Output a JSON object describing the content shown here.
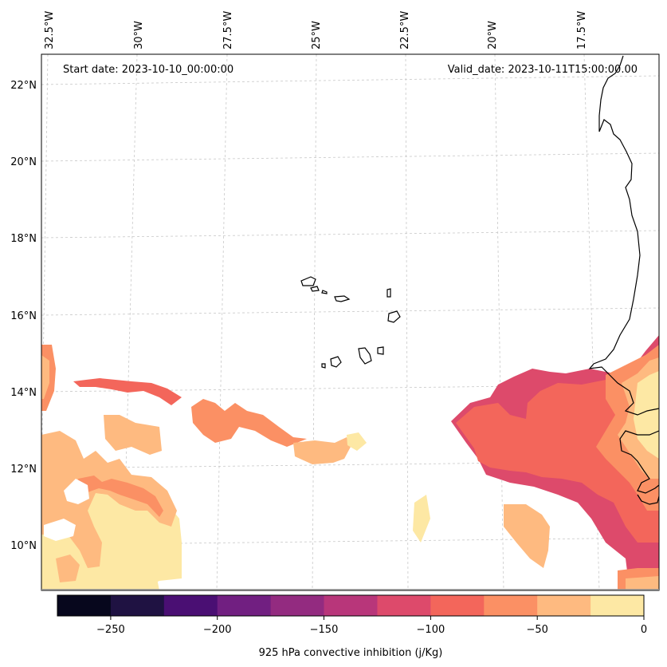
{
  "map": {
    "start_label": "Start date: 2023-10-10_00:00:00",
    "valid_label": "Valid_date: 2023-10-11T15:00:00.00",
    "lon_ticks": [
      "32.5°W",
      "30°W",
      "27.5°W",
      "25°W",
      "22.5°W",
      "20°W",
      "17.5°W"
    ],
    "lat_ticks": [
      "22°N",
      "20°N",
      "18°N",
      "16°N",
      "14°N",
      "12°N",
      "10°N"
    ],
    "extent": {
      "lon_min": -32.5,
      "lon_max": -15.0,
      "lat_min": 8.9,
      "lat_max": 22.7
    },
    "gridlines": true
  },
  "colorbar": {
    "label": "925 hPa convective inhibition (j/Kg)",
    "ticks": [
      "−250",
      "−200",
      "−150",
      "−100",
      "−50",
      "0"
    ],
    "levels": [
      -275,
      -250,
      -225,
      -200,
      -175,
      -150,
      -125,
      -100,
      -75,
      -50,
      -25,
      0
    ],
    "colors": [
      "#07071d",
      "#1f1242",
      "#4a0f73",
      "#711f81",
      "#932b80",
      "#b8367a",
      "#dd4a6b",
      "#f3665b",
      "#fb9064",
      "#feba80",
      "#fde8a4"
    ]
  }
}
